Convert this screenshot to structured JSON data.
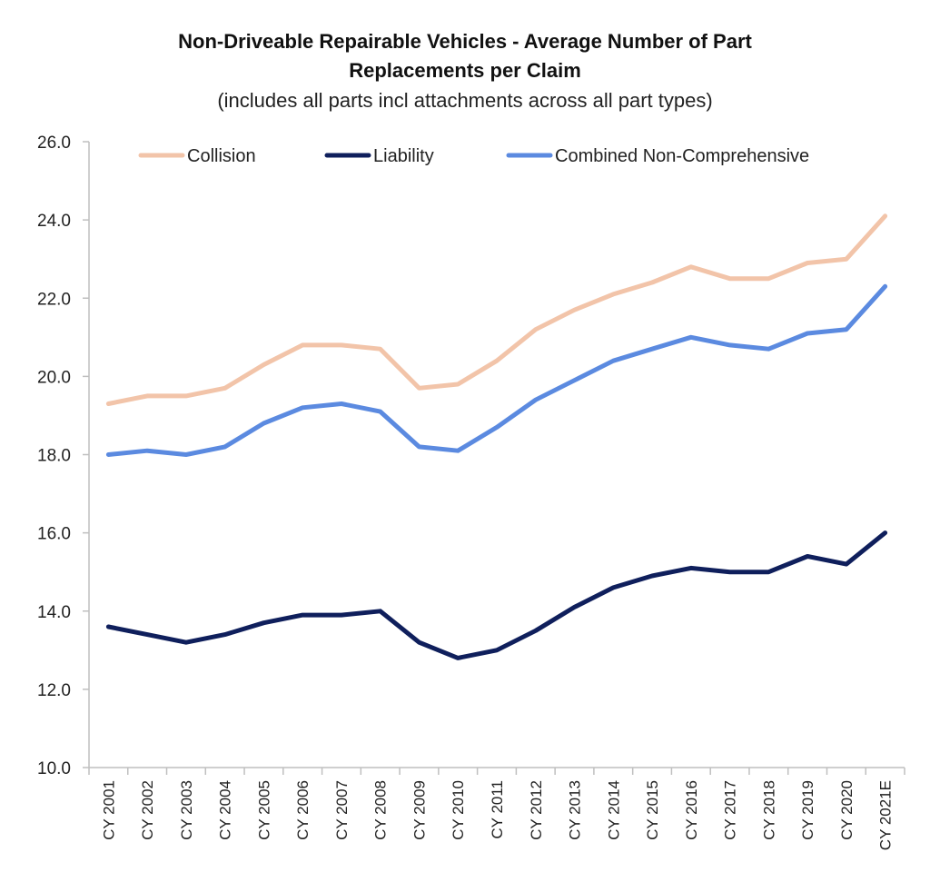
{
  "chart_data": {
    "type": "line",
    "title_line1": "Non-Driveable Repairable Vehicles - Average Number of Part",
    "title_line2": "Replacements per Claim",
    "subtitle": "(includes all parts incl attachments across all part types)",
    "categories": [
      "CY 2001",
      "CY 2002",
      "CY 2003",
      "CY 2004",
      "CY 2005",
      "CY 2006",
      "CY 2007",
      "CY 2008",
      "CY 2009",
      "CY 2010",
      "CY 2011",
      "CY 2012",
      "CY 2013",
      "CY 2014",
      "CY 2015",
      "CY 2016",
      "CY 2017",
      "CY 2018",
      "CY 2019",
      "CY 2020",
      "CY 2021E"
    ],
    "ylim": [
      10,
      26
    ],
    "yticks": [
      "10.0",
      "12.0",
      "14.0",
      "16.0",
      "18.0",
      "20.0",
      "22.0",
      "24.0",
      "26.0"
    ],
    "grid": false,
    "legend_position": "top",
    "series": [
      {
        "name": "Collision",
        "color": "#f2c4a9",
        "values": [
          19.3,
          19.5,
          19.5,
          19.7,
          20.3,
          20.8,
          20.8,
          20.7,
          19.7,
          19.8,
          20.4,
          21.2,
          21.7,
          22.1,
          22.4,
          22.8,
          22.5,
          22.5,
          22.9,
          23.0,
          24.1
        ]
      },
      {
        "name": "Liability",
        "color": "#0f1f5c",
        "values": [
          13.6,
          13.4,
          13.2,
          13.4,
          13.7,
          13.9,
          13.9,
          14.0,
          13.2,
          12.8,
          13.0,
          13.5,
          14.1,
          14.6,
          14.9,
          15.1,
          15.0,
          15.0,
          15.4,
          15.2,
          16.0
        ]
      },
      {
        "name": "Combined Non-Comprehensive",
        "color": "#5b8ae0",
        "values": [
          18.0,
          18.1,
          18.0,
          18.2,
          18.8,
          19.2,
          19.3,
          19.1,
          18.2,
          18.1,
          18.7,
          19.4,
          19.9,
          20.4,
          20.7,
          21.0,
          20.8,
          20.7,
          21.1,
          21.2,
          22.3
        ]
      }
    ]
  }
}
